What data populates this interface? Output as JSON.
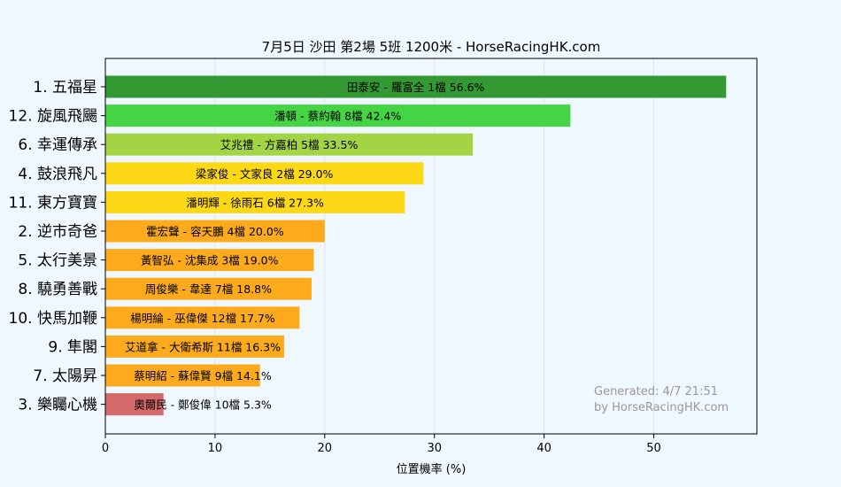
{
  "chart_data": {
    "type": "bar",
    "orientation": "horizontal",
    "title": "7月5日  沙田  第2場  5班  1200米 - HorseRacingHK.com",
    "xlabel": "位置機率 (%)",
    "ylabel": "",
    "xlim": [
      0,
      59.4
    ],
    "xticks": [
      "0",
      "10",
      "20",
      "30",
      "40",
      "50"
    ],
    "grid": "vertical",
    "categories": [
      "1. 五福星",
      "12. 旋風飛颺",
      "6. 幸運傳承",
      "4. 鼓浪飛凡",
      "11. 東方寶寶",
      "2. 逆市奇爸",
      "5. 太行美景",
      "8. 驍勇善戰",
      "10. 快馬加鞭",
      "9. 隼閣",
      "7. 太陽昇",
      "3. 樂矚心機"
    ],
    "values": [
      56.6,
      42.4,
      33.5,
      29.0,
      27.3,
      20.0,
      19.0,
      18.8,
      17.7,
      16.3,
      14.1,
      5.3
    ],
    "labels": [
      "田泰安 - 羅富全 1檔  56.6%",
      "潘頓 - 蔡約翰 8檔  42.4%",
      "艾兆禮 - 方嘉柏 5檔  33.5%",
      "梁家俊 - 文家良 2檔  29.0%",
      "潘明輝 - 徐雨石 6檔  27.3%",
      "霍宏聲 - 容天鵬 4檔  20.0%",
      "黃智弘 - 沈集成 3檔  19.0%",
      "周俊樂 - 韋達 7檔  18.8%",
      "楊明綸 - 巫偉傑 12檔  17.7%",
      "艾道拿 - 大衛希斯 11檔  16.3%",
      "蔡明紹 - 蘇偉賢 9檔  14.1%",
      "奧爾民 - 鄭俊偉 10檔  5.3%"
    ],
    "colors": [
      "#339933",
      "#44d444",
      "#a3d444",
      "#fdd817",
      "#fdd817",
      "#fdab1c",
      "#fdab1c",
      "#fdab1c",
      "#fdab1c",
      "#fdab1c",
      "#fdab1c",
      "#d46a6a"
    ],
    "annotation": [
      "Generated: 4/7 21:51",
      "by HorseRacingHK.com"
    ]
  }
}
